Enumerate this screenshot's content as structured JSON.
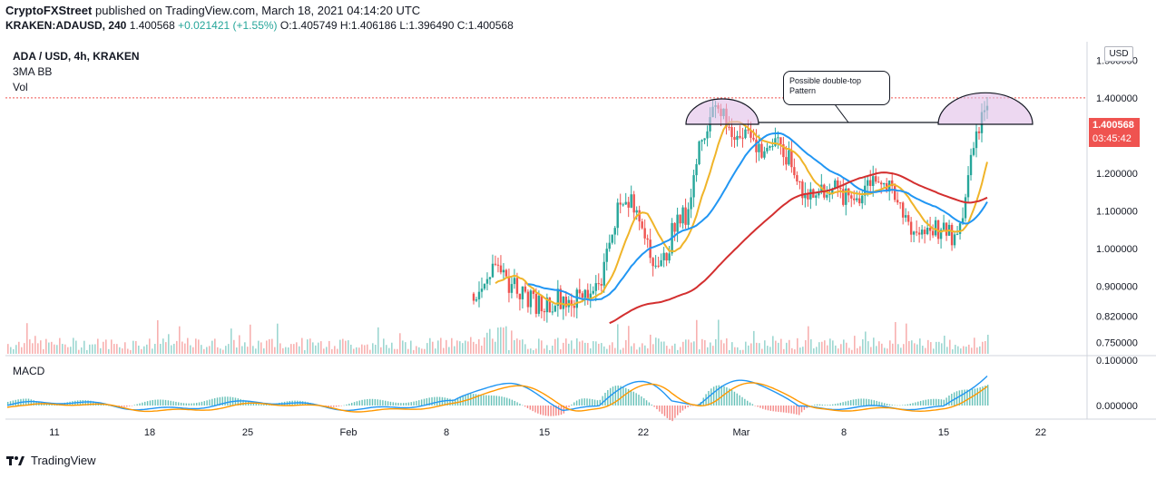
{
  "header": {
    "publisher": "CryptoFXStreet",
    "published_text": "published on TradingView.com, March 18, 2021 04:14:20 UTC",
    "symbol": "KRAKEN:ADAUSD, 240",
    "last": "1.400568",
    "change": "+0.021421 (+1.55%)",
    "ohlc": "O:1.405749 H:1.406186 L:1.396490 C:1.400568"
  },
  "legend": {
    "title": "ADA / USD, 4h, KRAKEN",
    "line2": "3MA BB",
    "line3": "Vol"
  },
  "macd_label": "MACD",
  "currency_button": "USD",
  "price_tag": {
    "price": "1.400568",
    "countdown": "03:45:42"
  },
  "annotation": {
    "text": "Possible double-top Pattern"
  },
  "footer": {
    "brand": "TradingView"
  },
  "colors": {
    "up": "#26a69a",
    "down": "#ef5350",
    "ma_fast": "#f0b429",
    "ma_mid": "#2196f3",
    "ma_slow": "#d32f2f",
    "macd": "#2196f3",
    "signal": "#ff9800"
  },
  "chart_data": {
    "type": "candlestick",
    "x_ticks": [
      "11",
      "18",
      "25",
      "Feb",
      "8",
      "15",
      "22",
      "Mar",
      "8",
      "15",
      "22"
    ],
    "y_ticks": [
      "1.500000",
      "1.400000",
      "1.300000",
      "1.200000",
      "1.100000",
      "1.000000",
      "0.900000",
      "0.820000",
      "0.750000"
    ],
    "macd_y_ticks": [
      "0.100000",
      "0.000000"
    ],
    "ylim": [
      0.72,
      1.55
    ],
    "price_line": 1.400568,
    "price_candles": [
      {
        "t": "Feb 10",
        "c": 0.88
      },
      {
        "t": "Feb 11",
        "c": 0.94
      },
      {
        "t": "Feb 12",
        "c": 0.92
      },
      {
        "t": "Feb 13",
        "c": 0.9
      },
      {
        "t": "Feb 14",
        "c": 0.86
      },
      {
        "t": "Feb 15",
        "c": 0.85
      },
      {
        "t": "Feb 16",
        "c": 0.87
      },
      {
        "t": "Feb 17",
        "c": 0.86
      },
      {
        "t": "Feb 18",
        "c": 0.88
      },
      {
        "t": "Feb 19",
        "c": 0.93
      },
      {
        "t": "Feb 20",
        "c": 1.1
      },
      {
        "t": "Feb 21",
        "c": 1.12
      },
      {
        "t": "Feb 22",
        "c": 1.05
      },
      {
        "t": "Feb 23",
        "c": 0.93
      },
      {
        "t": "Feb 24",
        "c": 1.05
      },
      {
        "t": "Feb 25",
        "c": 1.1
      },
      {
        "t": "Feb 26",
        "c": 1.3
      },
      {
        "t": "Feb 27",
        "c": 1.4
      },
      {
        "t": "Feb 28",
        "c": 1.3
      },
      {
        "t": "Mar 1",
        "c": 1.32
      },
      {
        "t": "Mar 2",
        "c": 1.26
      },
      {
        "t": "Mar 3",
        "c": 1.28
      },
      {
        "t": "Mar 4",
        "c": 1.24
      },
      {
        "t": "Mar 5",
        "c": 1.16
      },
      {
        "t": "Mar 6",
        "c": 1.14
      },
      {
        "t": "Mar 7",
        "c": 1.17
      },
      {
        "t": "Mar 8",
        "c": 1.13
      },
      {
        "t": "Mar 9",
        "c": 1.14
      },
      {
        "t": "Mar 10",
        "c": 1.2
      },
      {
        "t": "Mar 11",
        "c": 1.16
      },
      {
        "t": "Mar 12",
        "c": 1.1
      },
      {
        "t": "Mar 13",
        "c": 1.04
      },
      {
        "t": "Mar 14",
        "c": 1.06
      },
      {
        "t": "Mar 15",
        "c": 1.04
      },
      {
        "t": "Mar 16",
        "c": 1.02
      },
      {
        "t": "Mar 17",
        "c": 1.28
      },
      {
        "t": "Mar 18",
        "c": 1.4
      }
    ],
    "macd_ylim": [
      -0.03,
      0.11
    ]
  }
}
